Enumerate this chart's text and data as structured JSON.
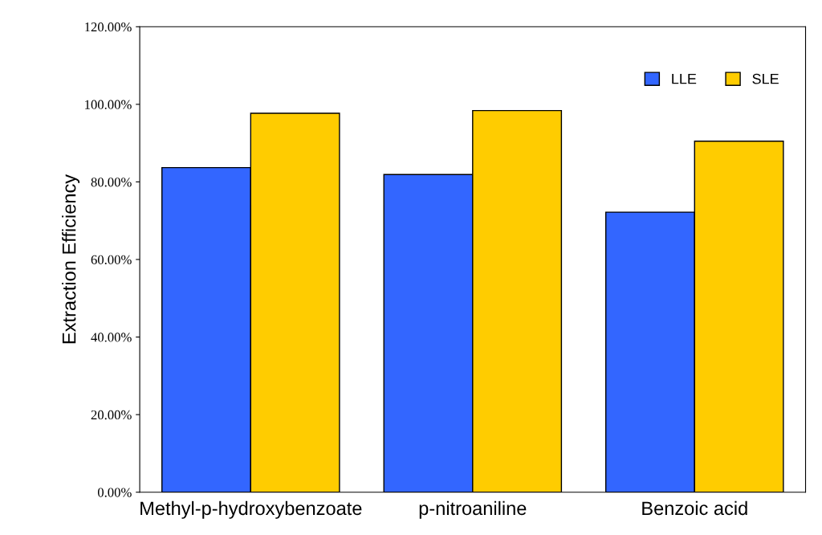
{
  "chart_data": {
    "type": "bar",
    "ylabel": "Extraction Efficiency",
    "categories": [
      "Methyl-p-hydroxybenzoate",
      "p-nitroaniline",
      "Benzoic acid"
    ],
    "series": [
      {
        "name": "LLE",
        "color": "#3366ff",
        "values": [
          83.7,
          81.9,
          72.2
        ]
      },
      {
        "name": "SLE",
        "color": "#ffcc00",
        "values": [
          97.7,
          98.4,
          90.5
        ]
      }
    ],
    "ylim": [
      0,
      120
    ],
    "yticks": [
      {
        "value": 0,
        "label": "0.00%"
      },
      {
        "value": 20,
        "label": "20.00%"
      },
      {
        "value": 40,
        "label": "40.00%"
      },
      {
        "value": 60,
        "label": "60.00%"
      },
      {
        "value": 80,
        "label": "80.00%"
      },
      {
        "value": 100,
        "label": "100.00%"
      },
      {
        "value": 120,
        "label": "120.00%"
      }
    ],
    "grid": false,
    "legend": "top right"
  }
}
